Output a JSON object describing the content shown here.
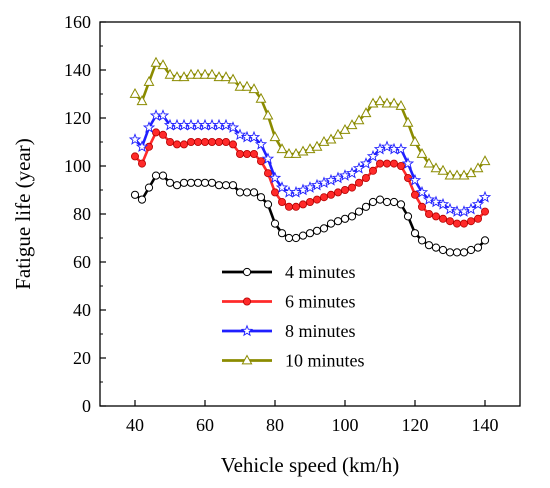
{
  "chart_data": {
    "type": "line",
    "title": "",
    "xlabel": "Vehicle speed (km/h)",
    "ylabel": "Fatigue life (year)",
    "xlim": [
      30,
      150
    ],
    "ylim": [
      0,
      160
    ],
    "xticks": [
      40,
      60,
      80,
      100,
      120,
      140
    ],
    "yticks": [
      0,
      20,
      40,
      60,
      80,
      100,
      120,
      140,
      160
    ],
    "grid": false,
    "legend_placement": "bottom-center",
    "x": [
      40,
      42,
      44,
      46,
      48,
      50,
      52,
      54,
      56,
      58,
      60,
      62,
      64,
      66,
      68,
      70,
      72,
      74,
      76,
      78,
      80,
      82,
      84,
      86,
      88,
      90,
      92,
      94,
      96,
      98,
      100,
      102,
      104,
      106,
      108,
      110,
      112,
      114,
      116,
      118,
      120,
      122,
      124,
      126,
      128,
      130,
      132,
      134,
      136,
      138,
      140
    ],
    "series": [
      {
        "name": "4 minutes",
        "color": "#000000",
        "marker": "circle-open",
        "values": [
          88,
          86,
          91,
          96,
          96,
          93,
          92,
          93,
          93,
          93,
          93,
          93,
          92,
          92,
          92,
          89,
          89,
          89,
          87,
          84,
          76,
          72,
          70,
          70,
          71,
          72,
          73,
          74,
          76,
          77,
          78,
          79,
          81,
          83,
          85,
          86,
          85,
          85,
          84,
          79,
          72,
          69,
          67,
          66,
          65,
          64,
          64,
          64,
          65,
          66,
          69
        ]
      },
      {
        "name": "6 minutes",
        "color": "#ff2a2a",
        "marker": "circle-filled",
        "values": [
          104,
          101,
          108,
          114,
          113,
          110,
          109,
          109,
          110,
          110,
          110,
          110,
          110,
          110,
          109,
          105,
          105,
          105,
          102,
          97,
          89,
          85,
          83,
          83,
          84,
          85,
          86,
          87,
          88,
          89,
          90,
          91,
          93,
          95,
          98,
          101,
          101,
          101,
          100,
          95,
          88,
          83,
          80,
          79,
          78,
          77,
          76,
          76,
          77,
          78,
          81
        ]
      },
      {
        "name": "8 minutes",
        "color": "#1f1fff",
        "marker": "star-open",
        "values": [
          111,
          108,
          116,
          121,
          121,
          117,
          117,
          117,
          117,
          117,
          117,
          117,
          117,
          117,
          116,
          113,
          112,
          112,
          109,
          103,
          95,
          91,
          89,
          89,
          90,
          91,
          92,
          93,
          94,
          95,
          96,
          97,
          99,
          101,
          104,
          107,
          108,
          107,
          107,
          101,
          94,
          89,
          86,
          85,
          84,
          82,
          81,
          81,
          82,
          84,
          87
        ]
      },
      {
        "name": "10 minutes",
        "color": "#8b8b00",
        "marker": "triangle-open",
        "values": [
          130,
          127,
          135,
          143,
          142,
          138,
          137,
          137,
          138,
          138,
          138,
          138,
          137,
          137,
          136,
          133,
          133,
          132,
          128,
          121,
          112,
          107,
          105,
          105,
          106,
          107,
          108,
          110,
          111,
          113,
          115,
          117,
          119,
          122,
          126,
          127,
          126,
          126,
          125,
          118,
          110,
          105,
          101,
          99,
          98,
          96,
          96,
          96,
          97,
          99,
          102
        ]
      }
    ]
  }
}
